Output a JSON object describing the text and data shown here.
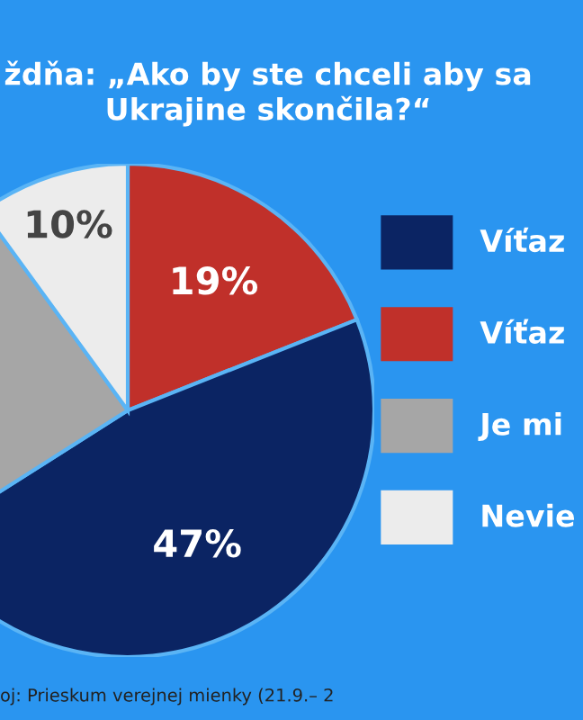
{
  "chart_data": {
    "type": "pie",
    "title": "ždňa: „Ako by ste chceli aby sa\nUkrajine skončila?“",
    "categories": [
      "Víťaz",
      "Víťaz",
      "Je mi",
      "Nevie"
    ],
    "values": [
      47,
      19,
      24,
      10
    ],
    "colors": [
      "#0b2463",
      "#c0302a",
      "#a6a6a6",
      "#ececec"
    ],
    "value_labels": [
      "47%",
      "19%",
      null,
      "10%"
    ],
    "legend": "right",
    "annotations": [
      "oj: Prieskum verejnej mienky (21.9.– 2"
    ]
  }
}
